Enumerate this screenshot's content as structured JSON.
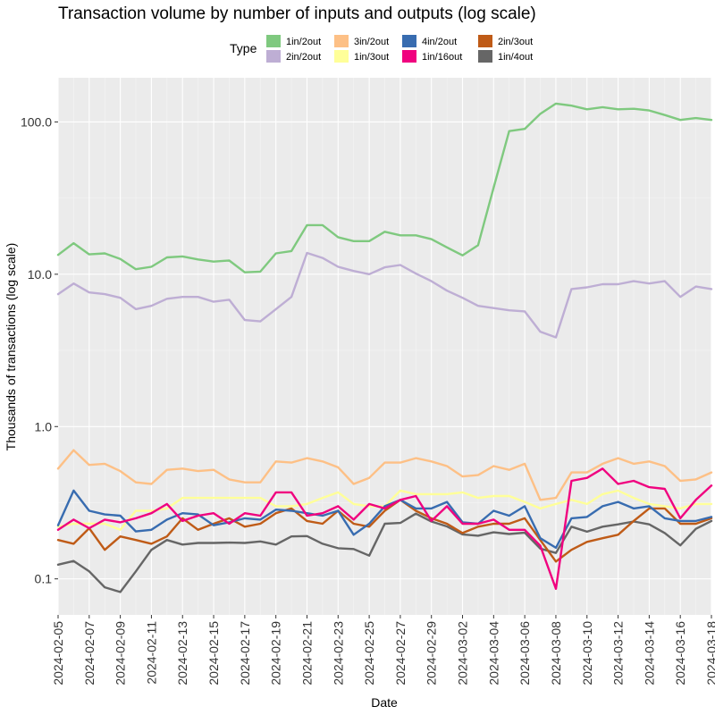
{
  "chart_data": {
    "type": "line",
    "title": "Transaction volume by number of inputs and outputs (log scale)",
    "xlabel": "Date",
    "ylabel": "Thousands of transactions (log scale)",
    "y_scale": "log10",
    "ylim": [
      0.058,
      195
    ],
    "grid": true,
    "legend_title": "Type",
    "legend_position": "top",
    "y_ticks": [
      0.1,
      1,
      10,
      100
    ],
    "y_tick_labels": [
      "0.1",
      "1.0",
      "10.0",
      "100.0"
    ],
    "x_tick_labels": [
      "2024-02-05",
      "2024-02-07",
      "2024-02-09",
      "2024-02-11",
      "2024-02-13",
      "2024-02-15",
      "2024-02-17",
      "2024-02-19",
      "2024-02-21",
      "2024-02-23",
      "2024-02-25",
      "2024-02-27",
      "2024-02-29",
      "2024-03-02",
      "2024-03-04",
      "2024-03-06",
      "2024-03-08",
      "2024-03-10",
      "2024-03-12",
      "2024-03-14",
      "2024-03-16",
      "2024-03-18"
    ],
    "x": [
      "2024-02-05",
      "2024-02-06",
      "2024-02-07",
      "2024-02-08",
      "2024-02-09",
      "2024-02-10",
      "2024-02-11",
      "2024-02-12",
      "2024-02-13",
      "2024-02-14",
      "2024-02-15",
      "2024-02-16",
      "2024-02-17",
      "2024-02-18",
      "2024-02-19",
      "2024-02-20",
      "2024-02-21",
      "2024-02-22",
      "2024-02-23",
      "2024-02-24",
      "2024-02-25",
      "2024-02-26",
      "2024-02-27",
      "2024-02-28",
      "2024-02-29",
      "2024-03-01",
      "2024-03-02",
      "2024-03-03",
      "2024-03-04",
      "2024-03-05",
      "2024-03-06",
      "2024-03-07",
      "2024-03-08",
      "2024-03-09",
      "2024-03-10",
      "2024-03-11",
      "2024-03-12",
      "2024-03-13",
      "2024-03-14",
      "2024-03-15",
      "2024-03-16",
      "2024-03-17",
      "2024-03-18"
    ],
    "series": [
      {
        "name": "1in/4out",
        "color": "#666666",
        "values": [
          0.124,
          0.131,
          0.112,
          0.088,
          0.082,
          0.112,
          0.155,
          0.18,
          0.168,
          0.172,
          0.172,
          0.173,
          0.172,
          0.176,
          0.168,
          0.19,
          0.191,
          0.17,
          0.159,
          0.157,
          0.142,
          0.23,
          0.233,
          0.268,
          0.238,
          0.221,
          0.196,
          0.192,
          0.202,
          0.197,
          0.201,
          0.158,
          0.148,
          0.22,
          0.204,
          0.22,
          0.228,
          0.238,
          0.228,
          0.2,
          0.166,
          0.213,
          0.24
        ]
      },
      {
        "name": "2in/3out",
        "color": "#BF5B17",
        "values": [
          0.18,
          0.17,
          0.215,
          0.155,
          0.19,
          0.18,
          0.17,
          0.19,
          0.25,
          0.21,
          0.23,
          0.25,
          0.22,
          0.23,
          0.27,
          0.29,
          0.24,
          0.23,
          0.28,
          0.23,
          0.22,
          0.28,
          0.33,
          0.28,
          0.25,
          0.23,
          0.2,
          0.22,
          0.23,
          0.23,
          0.25,
          0.18,
          0.13,
          0.155,
          0.175,
          0.185,
          0.195,
          0.24,
          0.29,
          0.29,
          0.23,
          0.23,
          0.25
        ]
      },
      {
        "name": "1in/3out",
        "color": "#FFFF99",
        "values": [
          0.22,
          0.23,
          0.23,
          0.23,
          0.21,
          0.28,
          0.28,
          0.29,
          0.34,
          0.34,
          0.34,
          0.34,
          0.34,
          0.34,
          0.3,
          0.3,
          0.31,
          0.34,
          0.37,
          0.31,
          0.3,
          0.3,
          0.38,
          0.36,
          0.36,
          0.36,
          0.37,
          0.34,
          0.35,
          0.35,
          0.32,
          0.29,
          0.31,
          0.33,
          0.31,
          0.36,
          0.38,
          0.34,
          0.31,
          0.3,
          0.29,
          0.31,
          0.31
        ]
      },
      {
        "name": "4in/2out",
        "color": "#386CB0",
        "values": [
          0.225,
          0.38,
          0.28,
          0.265,
          0.26,
          0.205,
          0.21,
          0.245,
          0.27,
          0.265,
          0.225,
          0.235,
          0.25,
          0.245,
          0.285,
          0.28,
          0.27,
          0.26,
          0.28,
          0.195,
          0.23,
          0.3,
          0.33,
          0.29,
          0.29,
          0.32,
          0.235,
          0.23,
          0.28,
          0.26,
          0.3,
          0.185,
          0.16,
          0.25,
          0.255,
          0.3,
          0.32,
          0.29,
          0.3,
          0.25,
          0.24,
          0.24,
          0.255
        ]
      },
      {
        "name": "1in/16out",
        "color": "#F0027F",
        "values": [
          0.21,
          0.245,
          0.215,
          0.245,
          0.235,
          0.25,
          0.27,
          0.31,
          0.24,
          0.26,
          0.27,
          0.23,
          0.27,
          0.26,
          0.37,
          0.37,
          0.26,
          0.27,
          0.3,
          0.245,
          0.31,
          0.29,
          0.33,
          0.35,
          0.24,
          0.3,
          0.23,
          0.23,
          0.245,
          0.21,
          0.21,
          0.165,
          0.086,
          0.44,
          0.46,
          0.53,
          0.42,
          0.44,
          0.4,
          0.39,
          0.25,
          0.33,
          0.41
        ]
      },
      {
        "name": "3in/2out",
        "color": "#FDC086",
        "values": [
          0.53,
          0.7,
          0.56,
          0.57,
          0.51,
          0.43,
          0.42,
          0.52,
          0.53,
          0.51,
          0.52,
          0.45,
          0.43,
          0.43,
          0.59,
          0.58,
          0.62,
          0.59,
          0.54,
          0.42,
          0.46,
          0.58,
          0.58,
          0.62,
          0.59,
          0.55,
          0.47,
          0.48,
          0.55,
          0.52,
          0.57,
          0.33,
          0.34,
          0.5,
          0.5,
          0.57,
          0.62,
          0.57,
          0.59,
          0.55,
          0.44,
          0.45,
          0.5
        ]
      },
      {
        "name": "2in/2out",
        "color": "#BEAED4",
        "values": [
          7.4,
          8.7,
          7.6,
          7.4,
          7.0,
          5.9,
          6.2,
          6.9,
          7.1,
          7.1,
          6.6,
          6.8,
          5.0,
          4.9,
          5.9,
          7.1,
          13.8,
          12.8,
          11.2,
          10.5,
          10.0,
          11.1,
          11.5,
          10.1,
          9.0,
          7.8,
          7.0,
          6.2,
          6.0,
          5.8,
          5.7,
          4.2,
          3.85,
          8.0,
          8.2,
          8.6,
          8.6,
          9.0,
          8.7,
          9.0,
          7.1,
          8.3,
          8.0
        ]
      },
      {
        "name": "1in/2out",
        "color": "#7FC97F",
        "values": [
          13.4,
          16.0,
          13.5,
          13.7,
          12.6,
          10.8,
          11.2,
          12.9,
          13.1,
          12.5,
          12.1,
          12.3,
          10.3,
          10.4,
          13.7,
          14.2,
          21.0,
          21.0,
          17.5,
          16.5,
          16.5,
          19.0,
          18.0,
          18.0,
          17.0,
          15.0,
          13.3,
          15.5,
          37.0,
          87.0,
          90.0,
          113.0,
          132.0,
          128.0,
          121.0,
          125.0,
          121.0,
          122.0,
          119.0,
          111.0,
          103.0,
          106.0,
          103.0
        ]
      }
    ],
    "legend_order": [
      "1in/2out",
      "2in/2out",
      "3in/2out",
      "1in/3out",
      "4in/2out",
      "1in/16out",
      "2in/3out",
      "1in/4out"
    ]
  }
}
